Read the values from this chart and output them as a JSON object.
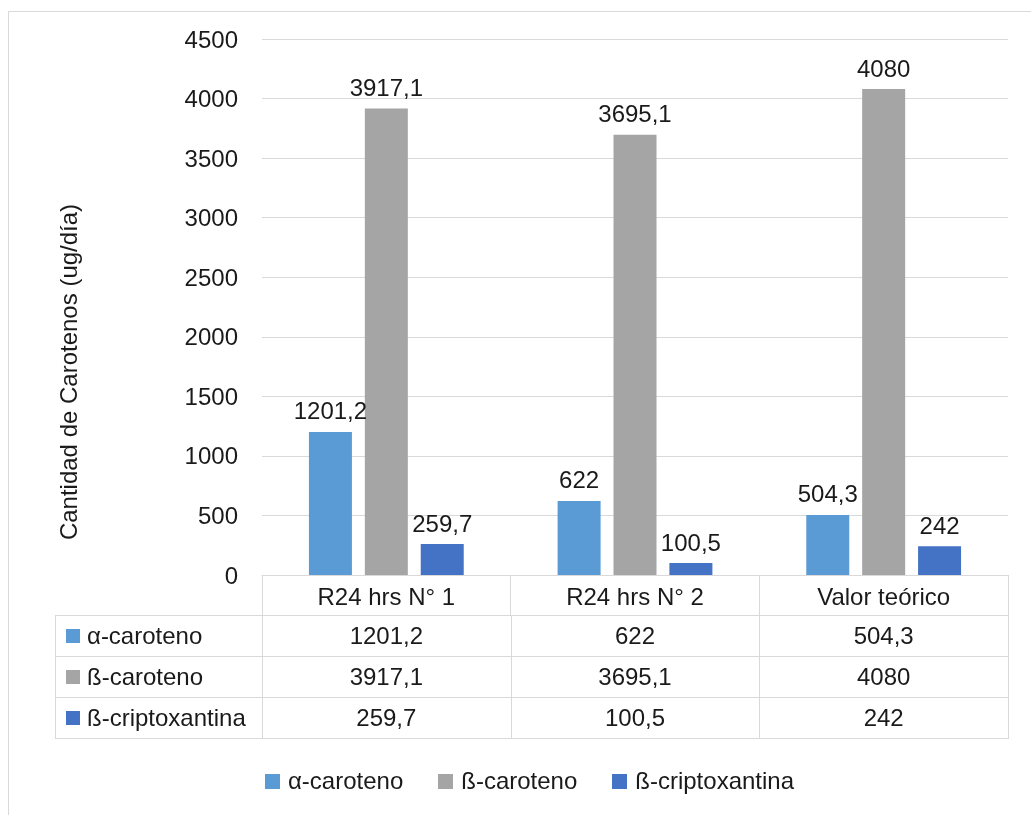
{
  "chart_data": {
    "type": "bar",
    "ylabel": "Cantidad de Carotenos (ug/día)",
    "categories": [
      "R24 hrs N° 1",
      "R24 hrs N° 2",
      "Valor teórico"
    ],
    "series": [
      {
        "name": "α-caroteno",
        "color": "#5b9bd5",
        "values": [
          1201.2,
          622,
          504.3
        ],
        "value_labels": [
          "1201,2",
          "622",
          "504,3"
        ]
      },
      {
        "name": "ß-caroteno",
        "color": "#a5a5a5",
        "values": [
          3917.1,
          3695.1,
          4080
        ],
        "value_labels": [
          "3917,1",
          "3695,1",
          "4080"
        ]
      },
      {
        "name": "ß-criptoxantina",
        "color": "#4472c4",
        "values": [
          259.7,
          100.5,
          242
        ],
        "value_labels": [
          "259,7",
          "100,5",
          "242"
        ]
      }
    ],
    "ylim": [
      0,
      4500
    ],
    "yticks": [
      0,
      500,
      1000,
      1500,
      2000,
      2500,
      3000,
      3500,
      4000,
      4500
    ],
    "grid": "y",
    "legend": "bottom"
  }
}
